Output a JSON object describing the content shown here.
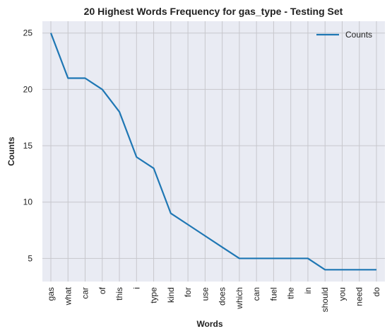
{
  "chart_data": {
    "type": "line",
    "title": "20 Highest Words Frequency for gas_type - Testing Set",
    "xlabel": "Words",
    "ylabel": "Counts",
    "categories": [
      "gas",
      "what",
      "car",
      "of",
      "this",
      "i",
      "type",
      "kind",
      "for",
      "use",
      "does",
      "which",
      "can",
      "fuel",
      "the",
      "in",
      "should",
      "you",
      "need",
      "do"
    ],
    "series": [
      {
        "name": "Counts",
        "values": [
          25,
          21,
          21,
          20,
          18,
          14,
          13,
          9,
          8,
          7,
          6,
          5,
          5,
          5,
          5,
          5,
          4,
          4,
          4,
          4
        ],
        "color": "#1f77b4"
      }
    ],
    "ylim": [
      2.95,
      26.05
    ],
    "yticks": [
      5,
      10,
      15,
      20,
      25
    ],
    "grid": true,
    "legend": "top-right",
    "background": "#e9ebf3",
    "grid_color": "#c7c7cc"
  }
}
